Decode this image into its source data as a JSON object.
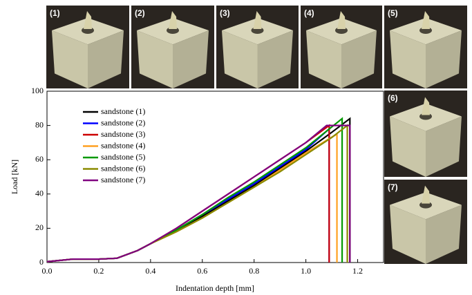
{
  "photos": [
    "(1)",
    "(2)",
    "(3)",
    "(4)",
    "(5)",
    "(6)",
    "(7)"
  ],
  "chart_data": {
    "type": "line",
    "xlabel": "Indentation depth [mm]",
    "ylabel": "Load [kN]",
    "xlim": [
      0,
      1.3
    ],
    "ylim": [
      0,
      100
    ],
    "xticks": [
      {
        "value": 0,
        "label": "0.0"
      },
      0.2,
      0.4,
      0.6,
      0.8,
      {
        "value": 1,
        "label": "1.0"
      },
      1.2
    ],
    "yticks": [
      0,
      20,
      40,
      60,
      80,
      100
    ],
    "legend": "upper left",
    "series": [
      {
        "name": "sandstone (1)",
        "color": "#000000",
        "x": [
          0,
          0.1,
          0.2,
          0.27,
          0.35,
          0.4,
          0.5,
          0.6,
          0.7,
          0.8,
          0.9,
          1.0,
          1.1,
          1.17,
          1.17
        ],
        "values": [
          0.5,
          2,
          2,
          2.5,
          7,
          11,
          19,
          27,
          36,
          45,
          55,
          65,
          76,
          84,
          0
        ]
      },
      {
        "name": "sandstone (2)",
        "color": "#0000ff",
        "x": [
          0,
          0.1,
          0.2,
          0.27,
          0.35,
          0.4,
          0.5,
          0.6,
          0.7,
          0.8,
          0.9,
          1.0,
          1.09,
          1.09
        ],
        "values": [
          0.5,
          2,
          2,
          2.5,
          7,
          11,
          19,
          28,
          37,
          46,
          56,
          66,
          78,
          0
        ]
      },
      {
        "name": "sandstone (3)",
        "color": "#cc0000",
        "x": [
          0,
          0.1,
          0.2,
          0.27,
          0.35,
          0.4,
          0.5,
          0.6,
          0.7,
          0.8,
          0.9,
          1.0,
          1.09,
          1.09
        ],
        "values": [
          0.5,
          2,
          2,
          2.5,
          7,
          11,
          20,
          30,
          40,
          50,
          60,
          70,
          80,
          0
        ]
      },
      {
        "name": "sandstone (4)",
        "color": "#ffa020",
        "x": [
          0,
          0.1,
          0.2,
          0.27,
          0.35,
          0.4,
          0.5,
          0.6,
          0.7,
          0.8,
          0.9,
          1.0,
          1.12,
          1.12
        ],
        "values": [
          0.5,
          2,
          2,
          2.5,
          7,
          11,
          18,
          26,
          35,
          44,
          54,
          64,
          75,
          0
        ]
      },
      {
        "name": "sandstone (5)",
        "color": "#009900",
        "x": [
          0,
          0.1,
          0.2,
          0.27,
          0.35,
          0.4,
          0.5,
          0.6,
          0.7,
          0.8,
          0.9,
          1.0,
          1.14,
          1.14
        ],
        "values": [
          0.5,
          2,
          2,
          2.5,
          7,
          11,
          19,
          28,
          38,
          47,
          57,
          67,
          84,
          0
        ]
      },
      {
        "name": "sandstone (6)",
        "color": "#8b8b00",
        "x": [
          0,
          0.1,
          0.2,
          0.27,
          0.35,
          0.4,
          0.5,
          0.6,
          0.7,
          0.8,
          0.9,
          1.0,
          1.1,
          1.16,
          1.16
        ],
        "values": [
          0.5,
          2,
          2,
          2.5,
          7,
          11,
          18,
          26,
          35,
          44,
          53,
          63,
          73,
          80,
          0
        ]
      },
      {
        "name": "sandstone (7)",
        "color": "#800080",
        "x": [
          0,
          0.1,
          0.2,
          0.27,
          0.35,
          0.4,
          0.5,
          0.6,
          0.7,
          0.8,
          0.9,
          1.0,
          1.08,
          1.17,
          1.17
        ],
        "values": [
          0.5,
          2,
          2,
          2.5,
          7,
          11,
          20,
          30,
          40,
          50,
          60,
          70,
          80,
          80,
          0
        ]
      }
    ]
  }
}
